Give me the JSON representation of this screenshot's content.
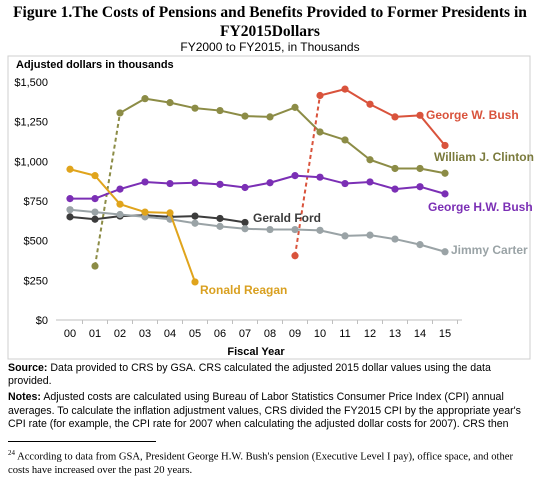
{
  "figure": {
    "title_line1": "Figure 1.The Costs of Pensions and Benefits Provided to Former Presidents in",
    "title_line2": "FY2015Dollars",
    "subtitle": "FY2000 to FY2015, in Thousands"
  },
  "chart_data": {
    "type": "line",
    "ylabel": "Adjusted dollars in thousands",
    "xlabel": "Fiscal Year",
    "x": [
      "00",
      "01",
      "02",
      "03",
      "04",
      "05",
      "06",
      "07",
      "08",
      "09",
      "10",
      "11",
      "12",
      "13",
      "14",
      "15"
    ],
    "ylim": [
      0,
      1500
    ],
    "yticks": [
      0,
      250,
      500,
      750,
      1000,
      1250,
      1500
    ],
    "ytick_labels": [
      "$0",
      "$250",
      "$500",
      "$750",
      "$1,000",
      "$1,250",
      "$1,500"
    ],
    "grid": false,
    "series": [
      {
        "name": "William J. Clinton",
        "color": "#8c8c46",
        "label_color": "#7a7a3c",
        "values": [
          null,
          340,
          1305,
          1395,
          1370,
          1335,
          1320,
          1285,
          1280,
          1340,
          1185,
          1135,
          1010,
          955,
          955,
          925
        ],
        "dashed_segments": [
          1
        ]
      },
      {
        "name": "George W. Bush",
        "color": "#d9533c",
        "label_color": "#d9533c",
        "values": [
          null,
          null,
          null,
          null,
          null,
          null,
          null,
          null,
          null,
          405,
          1415,
          1455,
          1360,
          1280,
          1290,
          1100
        ],
        "dashed_segments": [
          9
        ]
      },
      {
        "name": "George H.W. Bush",
        "color": "#7b2fb5",
        "label_color": "#7b2fb5",
        "values": [
          765,
          765,
          825,
          870,
          860,
          865,
          855,
          835,
          865,
          910,
          900,
          860,
          870,
          825,
          840,
          795
        ],
        "dashed_segments": []
      },
      {
        "name": "Gerald Ford",
        "color": "#3c3c3c",
        "label_color": "#3c3c3c",
        "values": [
          650,
          635,
          655,
          660,
          650,
          655,
          640,
          615,
          null,
          null,
          null,
          null,
          null,
          null,
          null,
          null
        ],
        "dashed_segments": []
      },
      {
        "name": "Jimmy Carter",
        "color": "#9aa3a6",
        "label_color": "#9aa3a6",
        "values": [
          695,
          680,
          665,
          650,
          635,
          610,
          590,
          575,
          570,
          570,
          565,
          530,
          535,
          510,
          475,
          430
        ],
        "dashed_segments": []
      },
      {
        "name": "Ronald Reagan",
        "color": "#e0a41c",
        "label_color": "#d9a020",
        "values": [
          950,
          910,
          730,
          680,
          675,
          240,
          null,
          null,
          null,
          null,
          null,
          null,
          null,
          null,
          null,
          null
        ],
        "dashed_segments": []
      }
    ]
  },
  "notes": {
    "source_label": "Source:",
    "source_text": " Data provided to CRS by GSA. CRS calculated the adjusted 2015 dollar values using the data provided.",
    "notes_label": "Notes:",
    "notes_text": " Adjusted costs are calculated using Bureau of Labor Statistics Consumer Price Index (CPI) annual averages. To calculate the inflation adjustment values, CRS divided the FY2015 CPI by the appropriate year's CPI rate (for example, the CPI rate for 2007 when calculating the adjusted dollar costs for 2007). CRS then"
  },
  "footnote": {
    "number": "24",
    "text": " According to data from GSA, President George H.W. Bush's pension (Executive Level I pay), office space, and other costs have increased over the past 20 years."
  }
}
